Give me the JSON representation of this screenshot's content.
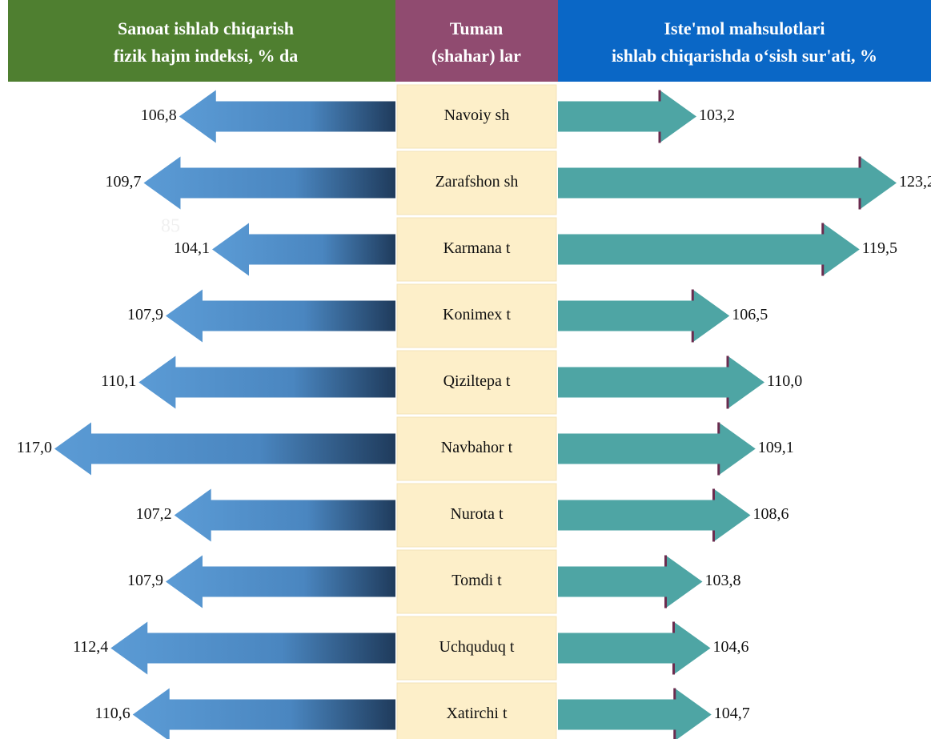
{
  "chart_data": {
    "type": "arrow",
    "annotation": "85",
    "category_header": [
      "Tuman",
      "(shahar) lar"
    ],
    "categories": [
      "Navoiy sh",
      "Zarafshon sh",
      "Karmana t",
      "Konimex t",
      "Qiziltepa t",
      "Navbahor t",
      "Nurota t",
      "Tomdi t",
      "Uchquduq t",
      "Xatirchi t"
    ],
    "series": [
      {
        "name": [
          "Sanoat ishlab chiqarish",
          "fizik hajm indeksi, % da"
        ],
        "color": "#5b9bd5",
        "values": [
          106.8,
          109.7,
          104.1,
          107.9,
          110.1,
          117.0,
          107.2,
          107.9,
          112.4,
          110.6
        ],
        "value_labels": [
          "106,8",
          "109,7",
          "104,1",
          "107,9",
          "110,1",
          "117,0",
          "107,2",
          "107,9",
          "112,4",
          "110,6"
        ]
      },
      {
        "name": [
          "Iste'mol mahsulotlari",
          "ishlab chiqarishda o‘sish sur'ati, %"
        ],
        "color": "#4ea5a4",
        "values": [
          103.2,
          123.2,
          119.5,
          106.5,
          110.0,
          109.1,
          108.6,
          103.8,
          104.6,
          104.7
        ],
        "value_labels": [
          "103,2",
          "123,2",
          "119,5",
          "106,5",
          "110,0",
          "109,1",
          "108,6",
          "103,8",
          "104,6",
          "104,7"
        ]
      }
    ]
  }
}
